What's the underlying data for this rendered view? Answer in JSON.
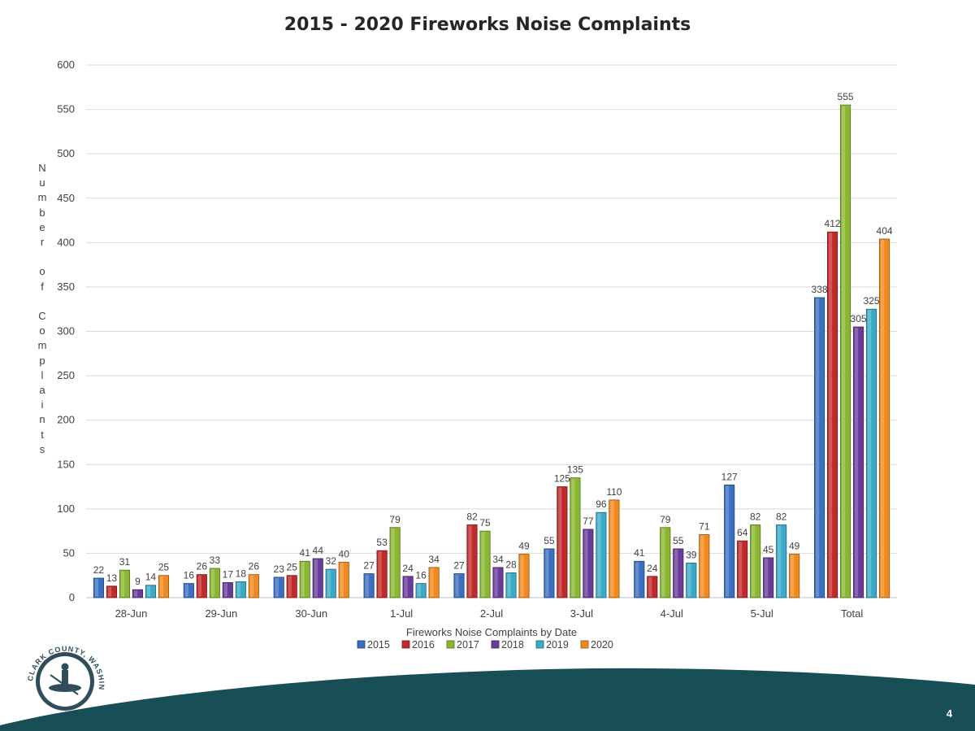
{
  "chart_data": {
    "type": "bar",
    "title": "2015 - 2020 Fireworks Noise Complaints",
    "xlabel": "Fireworks Noise Complaints by Date",
    "ylabel": "Number of Complaints",
    "ylim": [
      0,
      600
    ],
    "yticks": [
      0,
      50,
      100,
      150,
      200,
      250,
      300,
      350,
      400,
      450,
      500,
      550,
      600
    ],
    "grid": true,
    "legend_position": "bottom",
    "categories": [
      "28-Jun",
      "29-Jun",
      "30-Jun",
      "1-Jul",
      "2-Jul",
      "3-Jul",
      "4-Jul",
      "5-Jul",
      "Total"
    ],
    "series": [
      {
        "name": "2015",
        "color": "#3a6fc2",
        "values": [
          22,
          16,
          23,
          27,
          27,
          55,
          41,
          127,
          338
        ]
      },
      {
        "name": "2016",
        "color": "#c12a2a",
        "values": [
          13,
          26,
          25,
          53,
          82,
          125,
          24,
          64,
          412
        ]
      },
      {
        "name": "2017",
        "color": "#8ab631",
        "values": [
          31,
          33,
          41,
          79,
          75,
          135,
          79,
          82,
          555
        ]
      },
      {
        "name": "2018",
        "color": "#6a3c9a",
        "values": [
          9,
          17,
          44,
          24,
          34,
          77,
          55,
          45,
          305
        ]
      },
      {
        "name": "2019",
        "color": "#3aaac9",
        "values": [
          14,
          18,
          32,
          16,
          28,
          96,
          39,
          82,
          325
        ]
      },
      {
        "name": "2020",
        "color": "#f08a1e",
        "values": [
          25,
          26,
          40,
          34,
          49,
          110,
          71,
          49,
          404
        ]
      }
    ]
  },
  "logo_text": "CLARK COUNTY, WASHINGTON",
  "page_number": "4",
  "colors": {
    "footer_band": "#184e55",
    "grid": "#d9d9d9",
    "text": "#404040"
  }
}
